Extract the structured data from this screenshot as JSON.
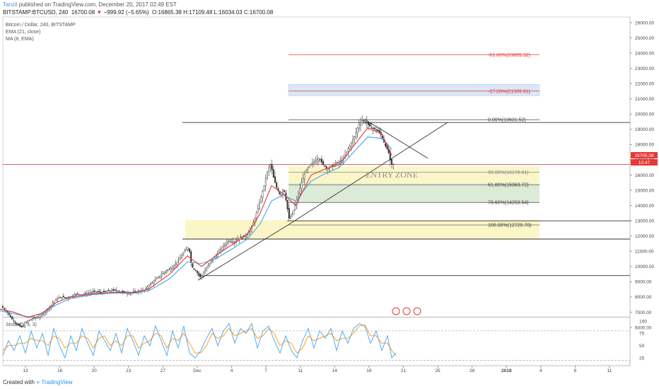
{
  "header": {
    "user": "Tanzil",
    "published_text": "published on TradingView.com, December 20, 2017 02:49 EST",
    "symbol": "BITSTAMP:BTCUSD, 240",
    "last": "16700.08",
    "change": "−999.92 (−5.65%)",
    "ohlc": "O:16865.38 H:17109.48 L:16034.03 C:16700.08"
  },
  "legend": {
    "title": "Bitcoin / Dollar, 240, BITSTAMP",
    "ema": "EMA (21, close)",
    "ma": "MA (8, EMA)"
  },
  "price_badge": "16700.08",
  "time_badge": "10:47",
  "zone_label": "ENTRY ZONE",
  "stoch_label": "Stoch (5, 3, 3)",
  "footer": {
    "created": "Created with",
    "brand": "TradingView"
  },
  "colors": {
    "ema": "#e53935",
    "ma": "#42a5f5",
    "candles": "#333333",
    "stoch_k": "#42a5f5",
    "stoch_d": "#ff9800",
    "accent_red": "#e53935"
  },
  "chart_data": {
    "type": "candlestick",
    "y_ticks": [
      6000,
      7000,
      8000,
      9000,
      10000,
      11000,
      12000,
      13000,
      14000,
      15000,
      16000,
      17000,
      18000,
      19000,
      20000,
      21000,
      22000,
      23000,
      24000,
      25000,
      26000
    ],
    "ylim": [
      5500,
      26500
    ],
    "x_ticks": [
      "13",
      "16",
      "20",
      "23",
      "27",
      "Dec",
      "4",
      "7",
      "11",
      "14",
      "18",
      "21",
      "25",
      "28",
      "2018",
      "4",
      "8",
      "11"
    ],
    "price_path": [
      [
        0,
        7500
      ],
      [
        6,
        7250
      ],
      [
        12,
        6950
      ],
      [
        18,
        6550
      ],
      [
        25,
        6200
      ],
      [
        32,
        6000
      ],
      [
        38,
        6350
      ],
      [
        45,
        6550
      ],
      [
        52,
        6650
      ],
      [
        58,
        6700
      ],
      [
        65,
        7050
      ],
      [
        72,
        7400
      ],
      [
        80,
        7850
      ],
      [
        88,
        8000
      ],
      [
        95,
        7950
      ],
      [
        102,
        8050
      ],
      [
        110,
        8200
      ],
      [
        118,
        8150
      ],
      [
        125,
        8250
      ],
      [
        135,
        8350
      ],
      [
        145,
        8300
      ],
      [
        155,
        8400
      ],
      [
        165,
        8450
      ],
      [
        175,
        8300
      ],
      [
        185,
        8250
      ],
      [
        195,
        8350
      ],
      [
        205,
        8450
      ],
      [
        215,
        8900
      ],
      [
        225,
        9300
      ],
      [
        235,
        9700
      ],
      [
        245,
        9950
      ],
      [
        255,
        10500
      ],
      [
        262,
        11000
      ],
      [
        268,
        11300
      ],
      [
        272,
        10000
      ],
      [
        278,
        9700
      ],
      [
        285,
        9300
      ],
      [
        292,
        9800
      ],
      [
        300,
        10400
      ],
      [
        308,
        10800
      ],
      [
        316,
        11300
      ],
      [
        324,
        11700
      ],
      [
        332,
        11600
      ],
      [
        340,
        11900
      ],
      [
        348,
        12000
      ],
      [
        355,
        12400
      ],
      [
        362,
        13200
      ],
      [
        368,
        14200
      ],
      [
        374,
        15200
      ],
      [
        380,
        16400
      ],
      [
        384,
        16700
      ],
      [
        388,
        15800
      ],
      [
        392,
        15200
      ],
      [
        398,
        14600
      ],
      [
        402,
        15200
      ],
      [
        406,
        14200
      ],
      [
        410,
        13100
      ],
      [
        414,
        13400
      ],
      [
        418,
        13900
      ],
      [
        422,
        14600
      ],
      [
        428,
        15600
      ],
      [
        434,
        16300
      ],
      [
        440,
        16700
      ],
      [
        446,
        16900
      ],
      [
        452,
        17100
      ],
      [
        458,
        16700
      ],
      [
        464,
        16400
      ],
      [
        470,
        16600
      ],
      [
        478,
        16800
      ],
      [
        486,
        17000
      ],
      [
        492,
        17600
      ],
      [
        498,
        18100
      ],
      [
        504,
        18700
      ],
      [
        508,
        19300
      ],
      [
        514,
        19600
      ],
      [
        520,
        19400
      ],
      [
        526,
        19100
      ],
      [
        532,
        19000
      ],
      [
        538,
        18800
      ],
      [
        542,
        18400
      ],
      [
        546,
        17900
      ],
      [
        550,
        17600
      ],
      [
        554,
        16700
      ]
    ],
    "ema21": [
      [
        0,
        7100
      ],
      [
        20,
        6900
      ],
      [
        40,
        6700
      ],
      [
        60,
        6900
      ],
      [
        80,
        7500
      ],
      [
        100,
        7900
      ],
      [
        130,
        8150
      ],
      [
        160,
        8250
      ],
      [
        190,
        8250
      ],
      [
        210,
        8400
      ],
      [
        240,
        9200
      ],
      [
        265,
        10300
      ],
      [
        285,
        10200
      ],
      [
        305,
        10500
      ],
      [
        330,
        11200
      ],
      [
        350,
        11800
      ],
      [
        368,
        12800
      ],
      [
        384,
        14300
      ],
      [
        400,
        14700
      ],
      [
        418,
        14300
      ],
      [
        440,
        15600
      ],
      [
        460,
        16100
      ],
      [
        480,
        16500
      ],
      [
        500,
        17500
      ],
      [
        520,
        18500
      ],
      [
        540,
        18400
      ],
      [
        554,
        17700
      ]
    ],
    "ma8ema": [
      [
        0,
        7200
      ],
      [
        20,
        7000
      ],
      [
        40,
        6650
      ],
      [
        60,
        6950
      ],
      [
        80,
        7650
      ],
      [
        100,
        8000
      ],
      [
        130,
        8200
      ],
      [
        160,
        8300
      ],
      [
        190,
        8300
      ],
      [
        210,
        8500
      ],
      [
        240,
        9500
      ],
      [
        265,
        10700
      ],
      [
        285,
        10000
      ],
      [
        305,
        10700
      ],
      [
        330,
        11500
      ],
      [
        350,
        12100
      ],
      [
        368,
        13500
      ],
      [
        384,
        15300
      ],
      [
        400,
        14800
      ],
      [
        418,
        14000
      ],
      [
        440,
        16000
      ],
      [
        460,
        16400
      ],
      [
        480,
        16700
      ],
      [
        500,
        17900
      ],
      [
        520,
        19100
      ],
      [
        540,
        18700
      ],
      [
        554,
        17300
      ]
    ],
    "fib_levels": [
      {
        "label": "-61.80%(23899.32)",
        "value": 23899.32,
        "color": "#e53935"
      },
      {
        "label": "-27.20%(21509.91)",
        "value": 21509.91,
        "color": "#e53935"
      },
      {
        "label": "0.00%(19631.52)",
        "value": 19631.52,
        "color": "#444444"
      },
      {
        "label": "50.00%(16178.61)",
        "value": 16178.61,
        "color": "#888888"
      },
      {
        "label": "61.80%(15363.72)",
        "value": 15363.72,
        "color": "#444444"
      },
      {
        "label": "78.60%(14203.54)",
        "value": 14203.54,
        "color": "#444444"
      },
      {
        "label": "100.00%(12725.70)",
        "value": 12725.7,
        "color": "#444444"
      }
    ],
    "horizontal_lines": [
      19450,
      16700,
      13000,
      11800,
      9400
    ],
    "stoch": {
      "ticks": [
        25,
        50,
        75,
        100
      ],
      "k": [
        [
          0,
          30
        ],
        [
          8,
          60
        ],
        [
          16,
          40
        ],
        [
          24,
          70
        ],
        [
          32,
          35
        ],
        [
          40,
          80
        ],
        [
          48,
          45
        ],
        [
          56,
          75
        ],
        [
          64,
          30
        ],
        [
          72,
          85
        ],
        [
          80,
          50
        ],
        [
          88,
          25
        ],
        [
          96,
          70
        ],
        [
          104,
          40
        ],
        [
          112,
          85
        ],
        [
          120,
          55
        ],
        [
          128,
          30
        ],
        [
          136,
          80
        ],
        [
          144,
          60
        ],
        [
          152,
          40
        ],
        [
          160,
          75
        ],
        [
          168,
          35
        ],
        [
          176,
          85
        ],
        [
          184,
          60
        ],
        [
          192,
          30
        ],
        [
          200,
          70
        ],
        [
          208,
          50
        ],
        [
          216,
          90
        ],
        [
          224,
          60
        ],
        [
          232,
          30
        ],
        [
          240,
          80
        ],
        [
          248,
          45
        ],
        [
          256,
          90
        ],
        [
          264,
          35
        ],
        [
          272,
          25
        ],
        [
          280,
          40
        ],
        [
          288,
          65
        ],
        [
          296,
          85
        ],
        [
          304,
          50
        ],
        [
          312,
          80
        ],
        [
          320,
          95
        ],
        [
          328,
          55
        ],
        [
          336,
          85
        ],
        [
          344,
          75
        ],
        [
          352,
          95
        ],
        [
          360,
          45
        ],
        [
          368,
          80
        ],
        [
          376,
          90
        ],
        [
          384,
          60
        ],
        [
          392,
          35
        ],
        [
          400,
          70
        ],
        [
          408,
          40
        ],
        [
          416,
          25
        ],
        [
          424,
          60
        ],
        [
          432,
          85
        ],
        [
          440,
          45
        ],
        [
          448,
          80
        ],
        [
          456,
          65
        ],
        [
          464,
          85
        ],
        [
          472,
          40
        ],
        [
          480,
          80
        ],
        [
          488,
          55
        ],
        [
          496,
          85
        ],
        [
          504,
          95
        ],
        [
          512,
          90
        ],
        [
          520,
          55
        ],
        [
          528,
          80
        ],
        [
          536,
          40
        ],
        [
          544,
          70
        ],
        [
          550,
          25
        ],
        [
          556,
          35
        ]
      ],
      "d": [
        [
          0,
          40
        ],
        [
          8,
          50
        ],
        [
          16,
          50
        ],
        [
          24,
          55
        ],
        [
          32,
          55
        ],
        [
          40,
          65
        ],
        [
          48,
          60
        ],
        [
          56,
          60
        ],
        [
          64,
          50
        ],
        [
          72,
          70
        ],
        [
          80,
          65
        ],
        [
          88,
          45
        ],
        [
          96,
          55
        ],
        [
          104,
          55
        ],
        [
          112,
          70
        ],
        [
          120,
          65
        ],
        [
          128,
          45
        ],
        [
          136,
          65
        ],
        [
          144,
          70
        ],
        [
          152,
          50
        ],
        [
          160,
          60
        ],
        [
          168,
          50
        ],
        [
          176,
          70
        ],
        [
          184,
          70
        ],
        [
          192,
          45
        ],
        [
          200,
          55
        ],
        [
          208,
          60
        ],
        [
          216,
          75
        ],
        [
          224,
          70
        ],
        [
          232,
          45
        ],
        [
          240,
          65
        ],
        [
          248,
          60
        ],
        [
          256,
          75
        ],
        [
          264,
          55
        ],
        [
          272,
          35
        ],
        [
          280,
          35
        ],
        [
          288,
          50
        ],
        [
          296,
          75
        ],
        [
          304,
          65
        ],
        [
          312,
          70
        ],
        [
          320,
          85
        ],
        [
          328,
          70
        ],
        [
          336,
          75
        ],
        [
          344,
          80
        ],
        [
          352,
          85
        ],
        [
          360,
          65
        ],
        [
          368,
          70
        ],
        [
          376,
          85
        ],
        [
          384,
          75
        ],
        [
          392,
          50
        ],
        [
          400,
          60
        ],
        [
          408,
          55
        ],
        [
          416,
          35
        ],
        [
          424,
          45
        ],
        [
          432,
          70
        ],
        [
          440,
          60
        ],
        [
          448,
          65
        ],
        [
          456,
          70
        ],
        [
          464,
          75
        ],
        [
          472,
          60
        ],
        [
          480,
          65
        ],
        [
          488,
          65
        ],
        [
          496,
          75
        ],
        [
          504,
          90
        ],
        [
          512,
          92
        ],
        [
          520,
          70
        ],
        [
          528,
          70
        ],
        [
          536,
          55
        ],
        [
          544,
          55
        ],
        [
          550,
          40
        ],
        [
          556,
          30
        ]
      ]
    }
  }
}
